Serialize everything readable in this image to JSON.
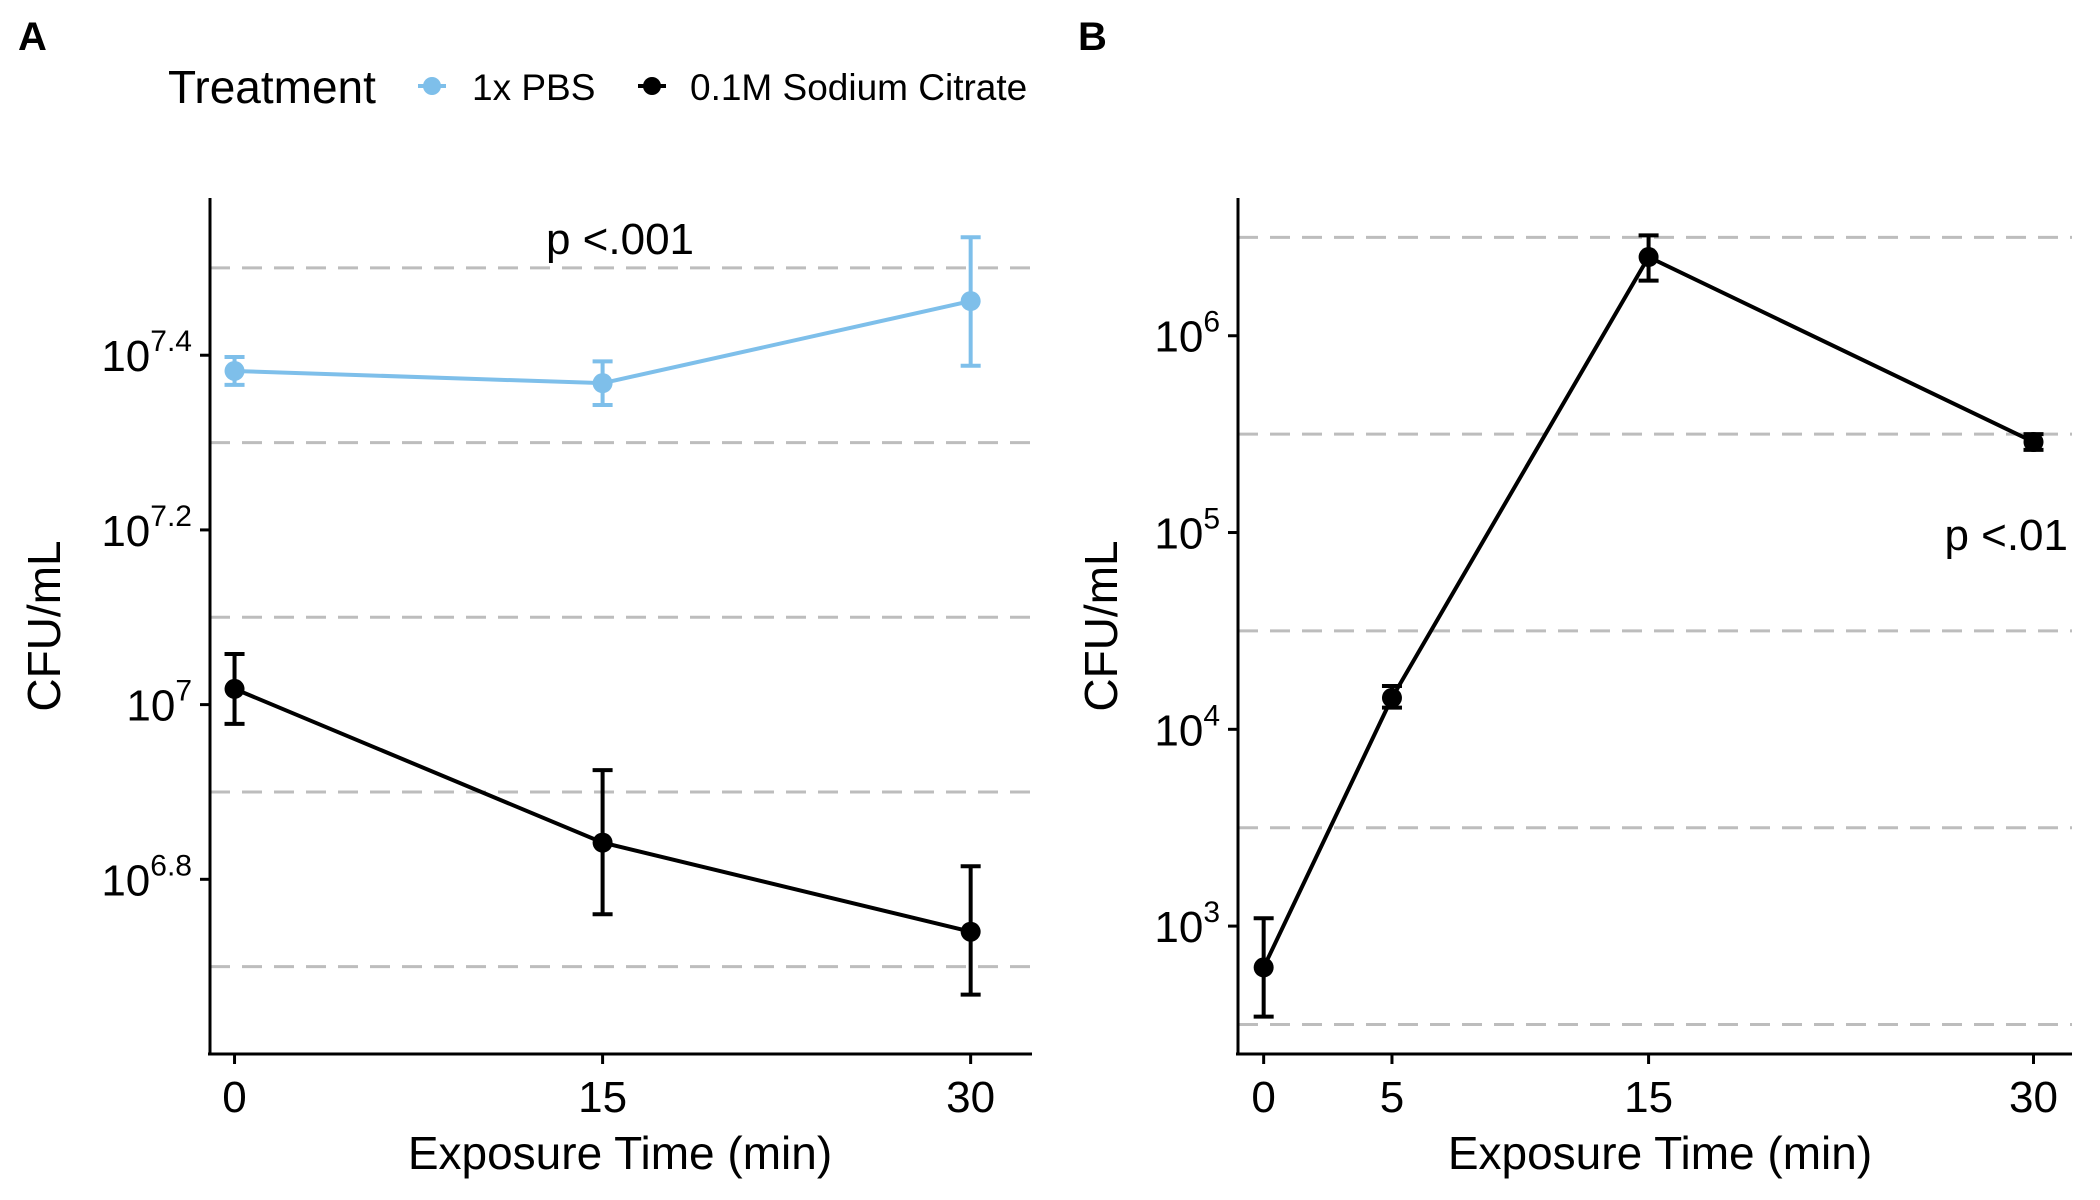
{
  "legend": {
    "title": "Treatment",
    "entries": [
      {
        "label": "1x PBS",
        "color": "#7EBFEA"
      },
      {
        "label": "0.1M Sodium Citrate",
        "color": "#000000"
      }
    ]
  },
  "chart_data": [
    {
      "panel": "A",
      "type": "line",
      "xlabel": "Exposure Time (min)",
      "ylabel": "CFU/mL",
      "y_scale": "log10",
      "x_ticks": [
        0,
        15,
        30
      ],
      "y_ticks": [
        {
          "base": "10",
          "exp": "6.8",
          "log10": 6.8
        },
        {
          "base": "10",
          "exp": "7",
          "log10": 7.0
        },
        {
          "base": "10",
          "exp": "7.2",
          "log10": 7.2
        },
        {
          "base": "10",
          "exp": "7.4",
          "log10": 7.4
        }
      ],
      "y_gridlines_log10": [
        6.7,
        6.9,
        7.1,
        7.3,
        7.5
      ],
      "grid": "horizontal dashed minor lines",
      "ylim_log10": [
        6.6,
        7.58
      ],
      "xlim": [
        -1,
        32.5
      ],
      "annotation": "p <.001",
      "series": [
        {
          "name": "1x PBS",
          "color": "#7EBFEA",
          "x": [
            0,
            15,
            30
          ],
          "y_log10": [
            7.382,
            7.368,
            7.462
          ],
          "err_low_log10": [
            7.366,
            7.343,
            7.388
          ],
          "err_high_log10": [
            7.398,
            7.393,
            7.535
          ]
        },
        {
          "name": "0.1M Sodium Citrate",
          "color": "#000000",
          "x": [
            0,
            15,
            30
          ],
          "y_log10": [
            7.018,
            6.842,
            6.74
          ],
          "err_low_log10": [
            6.978,
            6.76,
            6.668
          ],
          "err_high_log10": [
            7.058,
            6.925,
            6.815
          ]
        }
      ]
    },
    {
      "panel": "B",
      "type": "line",
      "xlabel": "Exposure Time (min)",
      "ylabel": "CFU/mL",
      "y_scale": "log10",
      "x_ticks": [
        0,
        5,
        15,
        30
      ],
      "y_ticks": [
        {
          "base": "10",
          "exp": "3",
          "log10": 3
        },
        {
          "base": "10",
          "exp": "4",
          "log10": 4
        },
        {
          "base": "10",
          "exp": "5",
          "log10": 5
        },
        {
          "base": "10",
          "exp": "6",
          "log10": 6
        }
      ],
      "y_gridlines_log10": [
        2.5,
        3.5,
        4.5,
        5.5,
        6.5
      ],
      "grid": "horizontal dashed minor lines",
      "ylim_log10": [
        2.35,
        6.7
      ],
      "xlim": [
        -1,
        31.5
      ],
      "annotation": "p <.01",
      "series": [
        {
          "name": "0.1M Sodium Citrate",
          "color": "#000000",
          "x": [
            0,
            5,
            15,
            30
          ],
          "y_log10": [
            2.79,
            4.16,
            6.4,
            5.46
          ],
          "err_low_log10": [
            2.54,
            4.11,
            6.28,
            5.42
          ],
          "err_high_log10": [
            3.04,
            4.22,
            6.51,
            5.5
          ]
        }
      ]
    }
  ],
  "panel_labels": [
    "A",
    "B"
  ]
}
